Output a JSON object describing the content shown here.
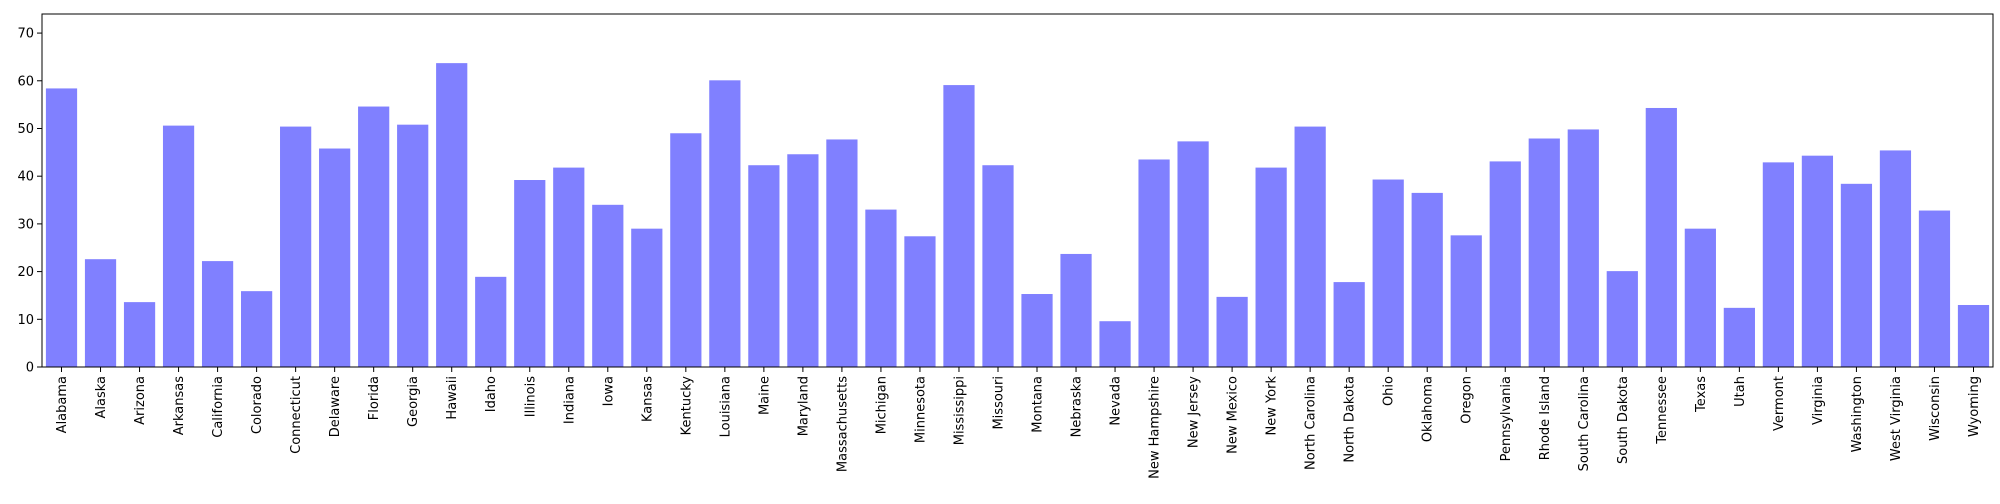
{
  "chart_data": {
    "type": "bar",
    "title": "",
    "xlabel": "",
    "ylabel": "",
    "ylim": [
      0,
      74
    ],
    "yticks": [
      0,
      10,
      20,
      30,
      40,
      50,
      60,
      70
    ],
    "grid": false,
    "bar_color": "#8080ff",
    "categories": [
      "Alabama",
      "Alaska",
      "Arizona",
      "Arkansas",
      "California",
      "Colorado",
      "Connecticut",
      "Delaware",
      "Florida",
      "Georgia",
      "Hawaii",
      "Idaho",
      "Illinois",
      "Indiana",
      "Iowa",
      "Kansas",
      "Kentucky",
      "Louisiana",
      "Maine",
      "Maryland",
      "Massachusetts",
      "Michigan",
      "Minnesota",
      "Mississippi",
      "Missouri",
      "Montana",
      "Nebraska",
      "Nevada",
      "New Hampshire",
      "New Jersey",
      "New Mexico",
      "New York",
      "North Carolina",
      "North Dakota",
      "Ohio",
      "Oklahoma",
      "Oregon",
      "Pennsylvania",
      "Rhode Island",
      "South Carolina",
      "South Dakota",
      "Tennessee",
      "Texas",
      "Utah",
      "Vermont",
      "Virginia",
      "Washington",
      "West Virginia",
      "Wisconsin",
      "Wyoming"
    ],
    "values": [
      58.4,
      22.6,
      13.6,
      50.6,
      22.2,
      15.9,
      50.4,
      45.8,
      54.6,
      50.8,
      63.7,
      18.9,
      39.2,
      41.8,
      34.0,
      29.0,
      49.0,
      60.1,
      42.3,
      44.6,
      47.7,
      33.0,
      27.4,
      59.1,
      42.3,
      15.3,
      23.7,
      9.6,
      43.5,
      47.3,
      14.7,
      41.8,
      50.4,
      17.8,
      39.3,
      36.5,
      27.6,
      43.1,
      47.9,
      49.8,
      20.1,
      54.3,
      29.0,
      12.4,
      42.9,
      44.3,
      38.4,
      45.4,
      32.8,
      13.0
    ]
  }
}
